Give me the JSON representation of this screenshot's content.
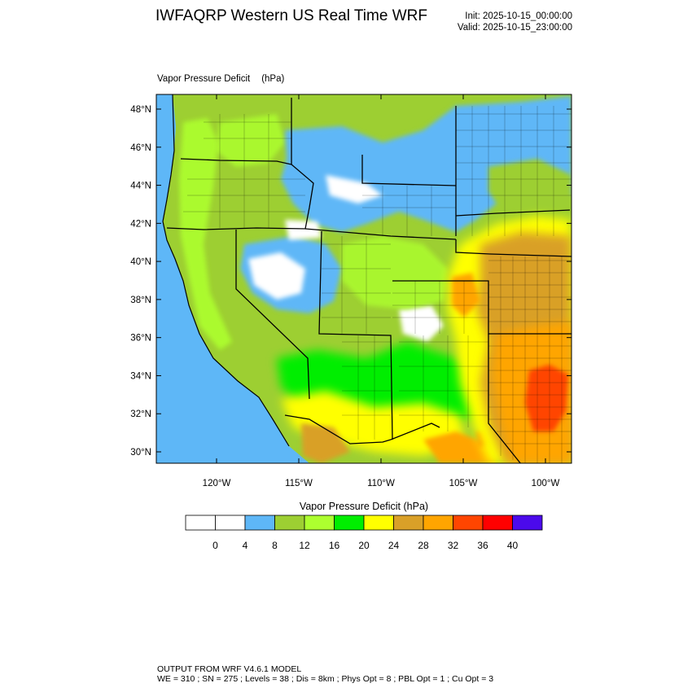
{
  "header": {
    "title": "IWFAQRP Western US Real Time WRF",
    "init": "Init: 2025-10-15_00:00:00",
    "valid": "Valid: 2025-10-15_23:00:00"
  },
  "plot": {
    "field_label": "Vapor Pressure Deficit",
    "units": "(hPa)",
    "lat_labels": [
      "48°N",
      "46°N",
      "44°N",
      "42°N",
      "40°N",
      "38°N",
      "36°N",
      "34°N",
      "32°N",
      "30°N"
    ],
    "lat_values": [
      48,
      46,
      44,
      42,
      40,
      38,
      36,
      34,
      32,
      30
    ],
    "lon_labels": [
      "120°W",
      "115°W",
      "110°W",
      "105°W",
      "100°W"
    ],
    "lon_values": [
      -120,
      -115,
      -110,
      -105,
      -100
    ]
  },
  "colorbar": {
    "title": "Vapor Pressure Deficit  (hPa)",
    "colors": [
      "#ffffff",
      "#ffffff",
      "#5eb7f7",
      "#9dcf32",
      "#adff2f",
      "#00ee00",
      "#ffff00",
      "#d9a028",
      "#ffa500",
      "#ff4500",
      "#ff0000",
      "#4b0aeb"
    ],
    "tick_labels": [
      "0",
      "4",
      "8",
      "12",
      "16",
      "20",
      "24",
      "28",
      "32",
      "36",
      "40"
    ]
  },
  "footer": {
    "line1": "OUTPUT FROM WRF V4.6.1 MODEL",
    "line2": "WE = 310 ; SN = 275 ; Levels = 38 ; Dis = 8km ; Phys Opt = 8 ; PBL Opt = 1 ; Cu Opt = 3"
  }
}
